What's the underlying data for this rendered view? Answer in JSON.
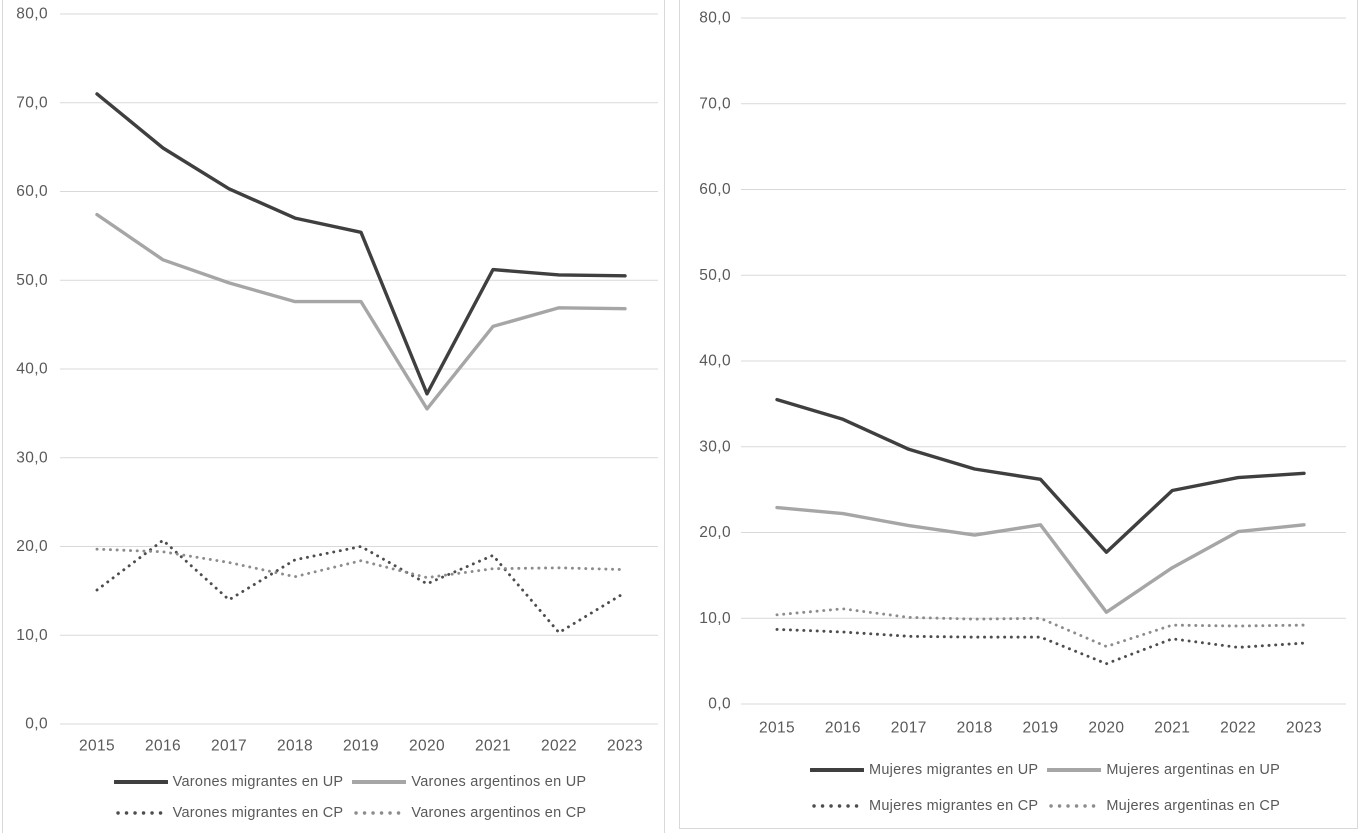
{
  "page": {
    "background": "#ffffff",
    "frame_border_color": "#d9d9d9",
    "gridline_color": "#d9d9d9",
    "axis_text_color": "#595959",
    "legend_text_color": "#595959"
  },
  "chart_data": [
    {
      "type": "line",
      "title": "",
      "xlabel": "",
      "ylabel": "",
      "categories": [
        "2015",
        "2016",
        "2017",
        "2018",
        "2019",
        "2020",
        "2021",
        "2022",
        "2023"
      ],
      "ylim": [
        0,
        80
      ],
      "y_tick_step": 10,
      "y_tick_labels": [
        "80,0",
        "70,0",
        "60,0",
        "50,0",
        "40,0",
        "30,0",
        "20,0",
        "10,0",
        "0,0"
      ],
      "grid": "horizontal",
      "legend_position": "bottom",
      "legend_rows": [
        [
          0,
          1
        ],
        [
          2,
          3
        ]
      ],
      "series": [
        {
          "name": "Varones migrantes en UP",
          "line": "solid",
          "color": "#3f3f3f",
          "values": [
            71.0,
            64.9,
            60.3,
            57.0,
            55.4,
            37.2,
            51.2,
            50.6,
            50.5
          ]
        },
        {
          "name": "Varones argentinos en UP",
          "line": "solid",
          "color": "#a6a6a6",
          "values": [
            57.4,
            52.3,
            49.7,
            47.6,
            47.6,
            35.5,
            44.8,
            46.9,
            46.8
          ]
        },
        {
          "name": "Varones migrantes en CP",
          "line": "dotted",
          "color": "#4d4d4d",
          "values": [
            15.1,
            20.7,
            14.0,
            18.5,
            20.0,
            15.8,
            19.0,
            10.3,
            14.8
          ]
        },
        {
          "name": "Varones argentinos en CP",
          "line": "dotted",
          "color": "#8c8c8c",
          "values": [
            19.7,
            19.4,
            18.2,
            16.6,
            18.4,
            16.5,
            17.5,
            17.6,
            17.4
          ]
        }
      ]
    },
    {
      "type": "line",
      "title": "",
      "xlabel": "",
      "ylabel": "",
      "categories": [
        "2015",
        "2016",
        "2017",
        "2018",
        "2019",
        "2020",
        "2021",
        "2022",
        "2023"
      ],
      "ylim": [
        0,
        80
      ],
      "y_tick_step": 10,
      "y_tick_labels": [
        "80,0",
        "70,0",
        "60,0",
        "50,0",
        "40,0",
        "30,0",
        "20,0",
        "10,0",
        "0,0"
      ],
      "grid": "horizontal",
      "legend_position": "bottom",
      "legend_rows": [
        [
          0,
          1
        ],
        [
          2,
          3
        ]
      ],
      "series": [
        {
          "name": "Mujeres migrantes en UP",
          "line": "solid",
          "color": "#3f3f3f",
          "values": [
            35.5,
            33.2,
            29.7,
            27.4,
            26.2,
            17.7,
            24.9,
            26.4,
            26.9
          ]
        },
        {
          "name": "Mujeres argentinas en UP",
          "line": "solid",
          "color": "#a6a6a6",
          "values": [
            22.9,
            22.2,
            20.8,
            19.7,
            20.9,
            10.7,
            15.9,
            20.1,
            20.9
          ]
        },
        {
          "name": "Mujeres migrantes en CP",
          "line": "dotted",
          "color": "#4d4d4d",
          "values": [
            8.7,
            8.4,
            7.9,
            7.8,
            7.8,
            4.7,
            7.6,
            6.6,
            7.1
          ]
        },
        {
          "name": "Mujeres argentinas en CP",
          "line": "dotted",
          "color": "#8c8c8c",
          "values": [
            10.4,
            11.1,
            10.1,
            9.9,
            10.0,
            6.7,
            9.2,
            9.1,
            9.2
          ]
        }
      ]
    }
  ]
}
